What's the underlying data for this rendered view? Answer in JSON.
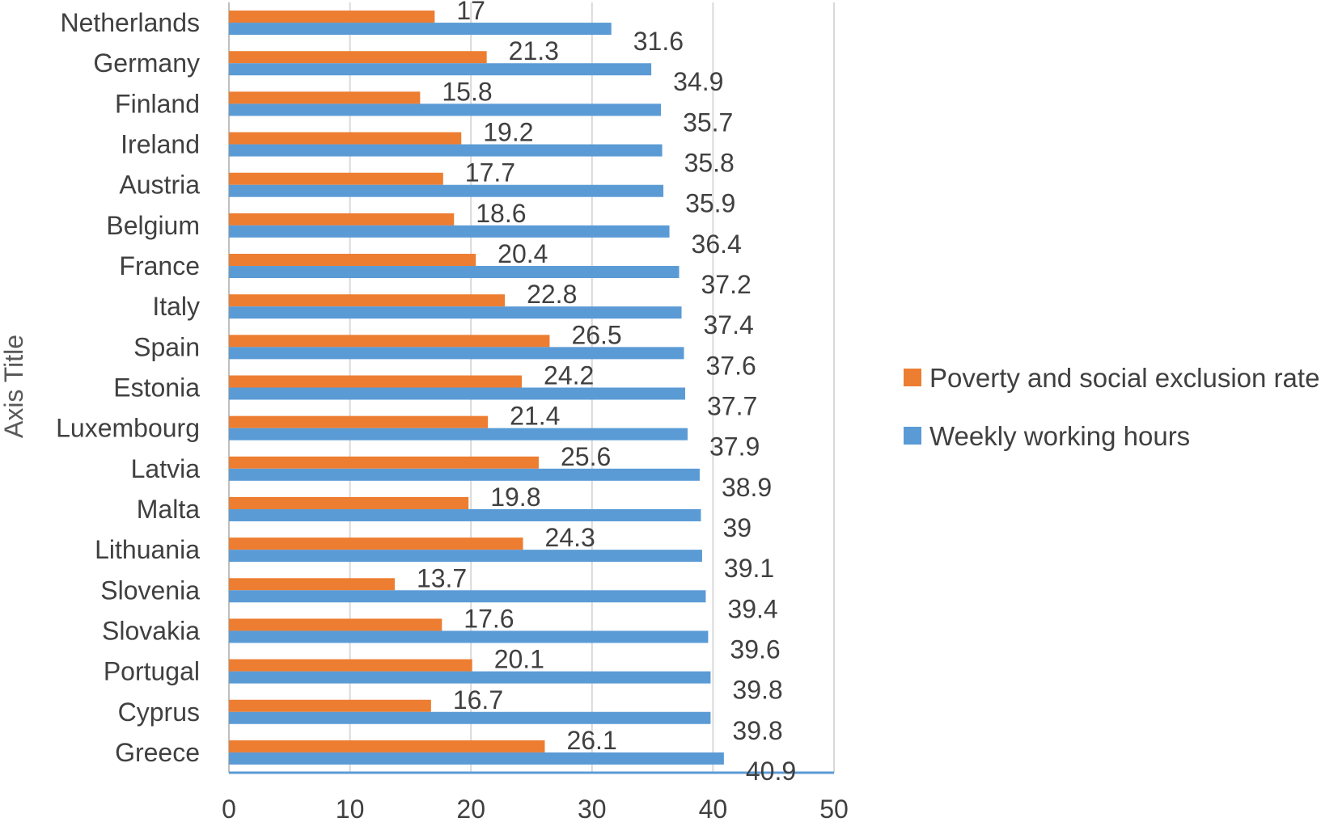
{
  "chart_data": {
    "type": "bar",
    "orientation": "horizontal",
    "title": "",
    "xlabel": "",
    "ylabel": "Axis Title",
    "xlim": [
      0,
      50
    ],
    "xticks": [
      0,
      10,
      20,
      30,
      40,
      50
    ],
    "grid": true,
    "legend_position": "right",
    "categories": [
      "Netherlands",
      "Germany",
      "Finland",
      "Ireland",
      "Austria",
      "Belgium",
      "France",
      "Italy",
      "Spain",
      "Estonia",
      "Luxembourg",
      "Latvia",
      "Malta",
      "Lithuania",
      "Slovenia",
      "Slovakia",
      "Portugal",
      "Cyprus",
      "Greece"
    ],
    "series": [
      {
        "name": "Poverty and social exclusion rate",
        "color": "#ED7D31",
        "values": [
          17,
          21.3,
          15.8,
          19.2,
          17.7,
          18.6,
          20.4,
          22.8,
          26.5,
          24.2,
          21.4,
          25.6,
          19.8,
          24.3,
          13.7,
          17.6,
          20.1,
          16.7,
          26.1
        ]
      },
      {
        "name": "Weekly working hours",
        "color": "#5B9BD5",
        "values": [
          31.6,
          34.9,
          35.7,
          35.8,
          35.9,
          36.4,
          37.2,
          37.4,
          37.6,
          37.7,
          37.9,
          38.9,
          39,
          39.1,
          39.4,
          39.6,
          39.8,
          39.8,
          40.9
        ]
      }
    ]
  }
}
